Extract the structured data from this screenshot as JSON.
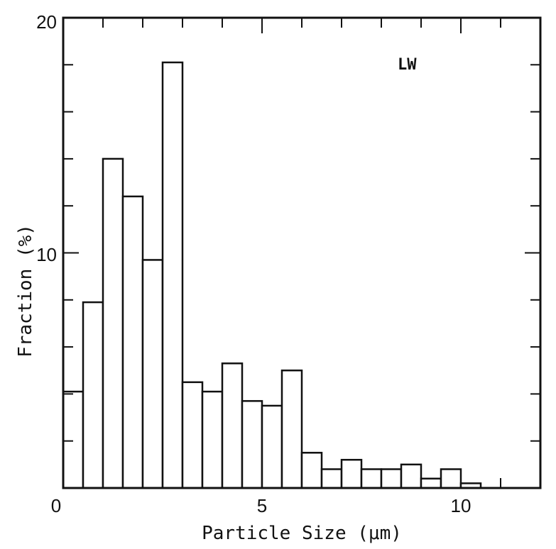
{
  "chart_data": {
    "type": "bar",
    "title": "",
    "xlabel": "Particle Size  (μm)",
    "ylabel": "Fraction  (%)",
    "annotation": "LW",
    "xlim": [
      0,
      12
    ],
    "ylim": [
      0,
      20
    ],
    "bin_width": 0.5,
    "x_ticks": [
      0,
      5,
      10
    ],
    "y_ticks": [
      10,
      20
    ],
    "origin_label": "0",
    "grid": false,
    "legend": "none",
    "bins": [
      {
        "x0": 0.0,
        "x1": 0.5,
        "value": 4.1
      },
      {
        "x0": 0.5,
        "x1": 1.0,
        "value": 7.9
      },
      {
        "x0": 1.0,
        "x1": 1.5,
        "value": 14.0
      },
      {
        "x0": 1.5,
        "x1": 2.0,
        "value": 12.4
      },
      {
        "x0": 2.0,
        "x1": 2.5,
        "value": 9.7
      },
      {
        "x0": 2.5,
        "x1": 3.0,
        "value": 18.1
      },
      {
        "x0": 3.0,
        "x1": 3.5,
        "value": 4.5
      },
      {
        "x0": 3.5,
        "x1": 4.0,
        "value": 4.1
      },
      {
        "x0": 4.0,
        "x1": 4.5,
        "value": 5.3
      },
      {
        "x0": 4.5,
        "x1": 5.0,
        "value": 3.7
      },
      {
        "x0": 5.0,
        "x1": 5.5,
        "value": 3.5
      },
      {
        "x0": 5.5,
        "x1": 6.0,
        "value": 5.0
      },
      {
        "x0": 6.0,
        "x1": 6.5,
        "value": 1.5
      },
      {
        "x0": 6.5,
        "x1": 7.0,
        "value": 0.8
      },
      {
        "x0": 7.0,
        "x1": 7.5,
        "value": 1.2
      },
      {
        "x0": 7.5,
        "x1": 8.0,
        "value": 0.8
      },
      {
        "x0": 8.0,
        "x1": 8.5,
        "value": 0.8
      },
      {
        "x0": 8.5,
        "x1": 9.0,
        "value": 1.0
      },
      {
        "x0": 9.0,
        "x1": 9.5,
        "value": 0.4
      },
      {
        "x0": 9.5,
        "x1": 10.0,
        "value": 0.8
      },
      {
        "x0": 10.0,
        "x1": 10.5,
        "value": 0.2
      }
    ],
    "colors": {
      "bar_fill": "#ffffff",
      "bar_stroke": "#111111",
      "axis": "#111111"
    }
  }
}
